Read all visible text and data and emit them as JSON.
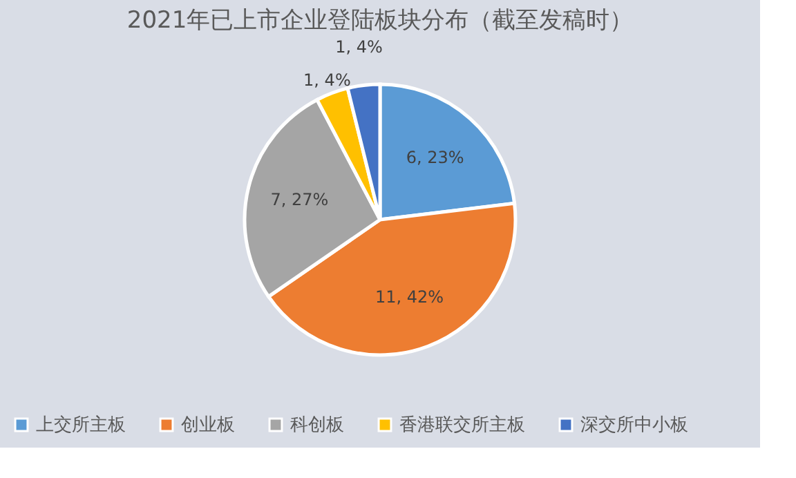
{
  "chart_data": {
    "type": "pie",
    "title": "2021年已上市企业登陆板块分布（截至发稿时）",
    "categories": [
      "上交所主板",
      "创业板",
      "科创板",
      "香港联交所主板",
      "深交所中小板"
    ],
    "values": [
      6,
      11,
      7,
      1,
      1
    ],
    "colors": [
      "#5b9bd5",
      "#ed7d31",
      "#a5a5a5",
      "#ffc000",
      "#4472c4"
    ],
    "value_labels": [
      "6, 23%",
      "11, 42%",
      "7, 27%",
      "1, 4%",
      "1, 4%"
    ],
    "legend": "bottom"
  }
}
